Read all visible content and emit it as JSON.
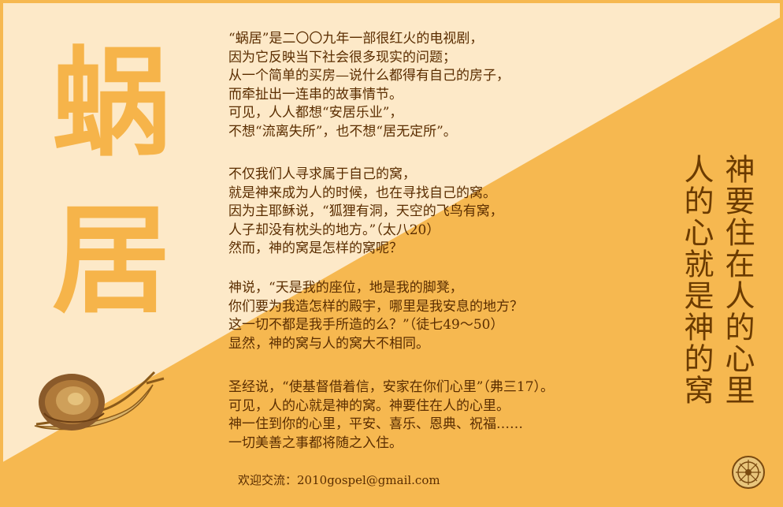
{
  "title_chars": [
    "蜗",
    "居"
  ],
  "paragraphs": [
    {
      "lines": [
        "“蜗居”是二〇〇九年一部很红火的电视剧，",
        "因为它反映当下社会很多现实的问题；",
        "从一个简单的买房—说什么都得有自己的房子，",
        "而牵扯出一连串的故事情节。",
        "可见，人人都想“安居乐业”，",
        "不想“流离失所”，也不想“居无定所”。"
      ]
    },
    {
      "lines": [
        "不仅我们人寻求属于自己的窝，",
        "就是神来成为人的时候，也在寻找自己的窝。",
        "因为主耶稣说，“狐狸有洞，天空的飞鸟有窝，",
        "人子却没有枕头的地方。”（太八20）",
        "然而，神的窝是怎样的窝呢？"
      ]
    },
    {
      "lines": [
        "神说，“天是我的座位，地是我的脚凳，",
        "你们要为我造怎样的殿宇，哪里是我安息的地方？",
        "这一切不都是我手所造的么？”（徒七49～50）",
        "显然，神的窝与人的窝大不相同。"
      ]
    },
    {
      "lines": [
        "圣经说，“使基督借着信，安家在你们心里”（弗三17）。",
        "可见，人的心就是神的窝。神要住在人的心里。",
        "神一住到你的心里，平安、喜乐、恩典、祝福……",
        "一切美善之事都将随之入住。"
      ]
    }
  ],
  "contact": {
    "label": "欢迎交流：",
    "email": "2010gospel@gmail.com"
  },
  "vertical_text": [
    "神要住在人的心里",
    "人的心就是神的窝"
  ],
  "colors": {
    "light_bg": "#fde9c8",
    "orange": "#f6b850",
    "text_brown": "#5a2d00",
    "title_orange": "#f6b44a"
  }
}
